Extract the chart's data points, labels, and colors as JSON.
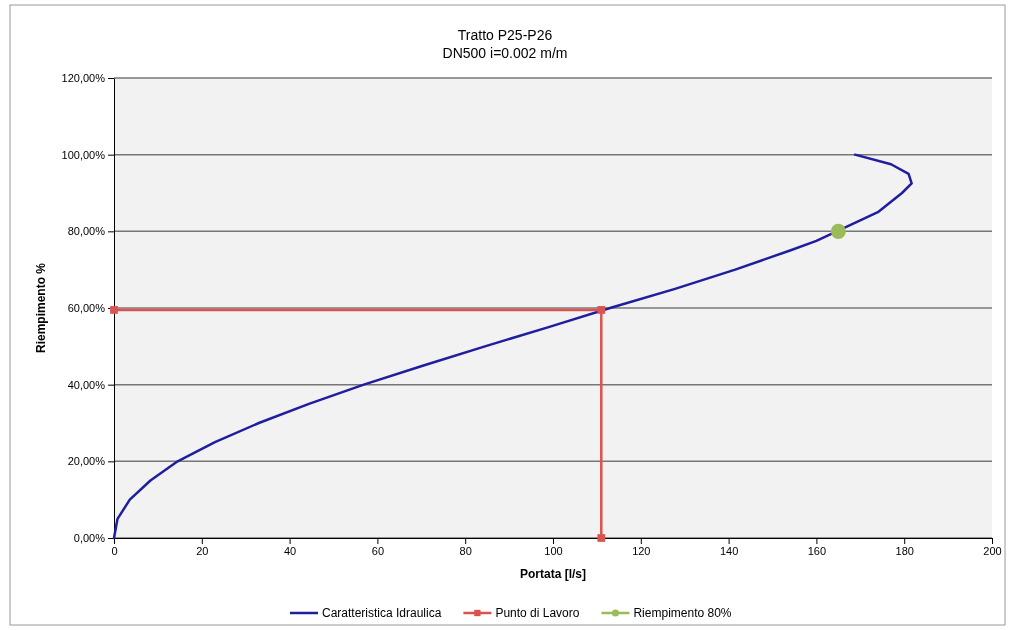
{
  "chart_data": {
    "type": "line",
    "title": "Tratto P25-P26",
    "subtitle": "DN500 i=0.002 m/m",
    "xlabel": "Portata [l/s]",
    "ylabel": "Riempimento %",
    "xlim": [
      0,
      200
    ],
    "xticks": [
      0,
      20,
      40,
      60,
      80,
      100,
      120,
      140,
      160,
      180,
      200
    ],
    "ylim": [
      0,
      120
    ],
    "yticks": [
      {
        "value": 0,
        "label": "0,00%"
      },
      {
        "value": 20,
        "label": "20,00%"
      },
      {
        "value": 40,
        "label": "40,00%"
      },
      {
        "value": 60,
        "label": "60,00%"
      },
      {
        "value": 80,
        "label": "80,00%"
      },
      {
        "value": 100,
        "label": "100,00%"
      },
      {
        "value": 120,
        "label": "120,00%"
      }
    ],
    "grid": "y",
    "legend": "bottom",
    "series": [
      {
        "name": "Caratteristica Idraulica",
        "color": "#1f1f9e",
        "marker": "none",
        "x": [
          0,
          0.8,
          3.6,
          8.3,
          14.5,
          23,
          33,
          44.4,
          56.9,
          70.5,
          84.5,
          99,
          113,
          127.8,
          141.5,
          154,
          160,
          174,
          179.5,
          181.7,
          181,
          177,
          168.8
        ],
        "values": [
          0,
          5,
          10,
          15,
          20,
          25,
          30,
          35,
          40,
          45,
          50,
          55,
          60,
          65,
          70,
          75,
          77.5,
          85,
          90,
          92.5,
          95,
          97.5,
          100
        ]
      },
      {
        "name": "Punto di Lavoro",
        "color": "#d9534f",
        "marker": "square",
        "x": [
          0,
          111,
          111
        ],
        "values": [
          59.5,
          59.5,
          0
        ]
      },
      {
        "name": "Riempimento 80%",
        "color": "#9bbb59",
        "marker": "circle",
        "type": "scatter",
        "x": [
          165
        ],
        "values": [
          80
        ]
      }
    ]
  }
}
